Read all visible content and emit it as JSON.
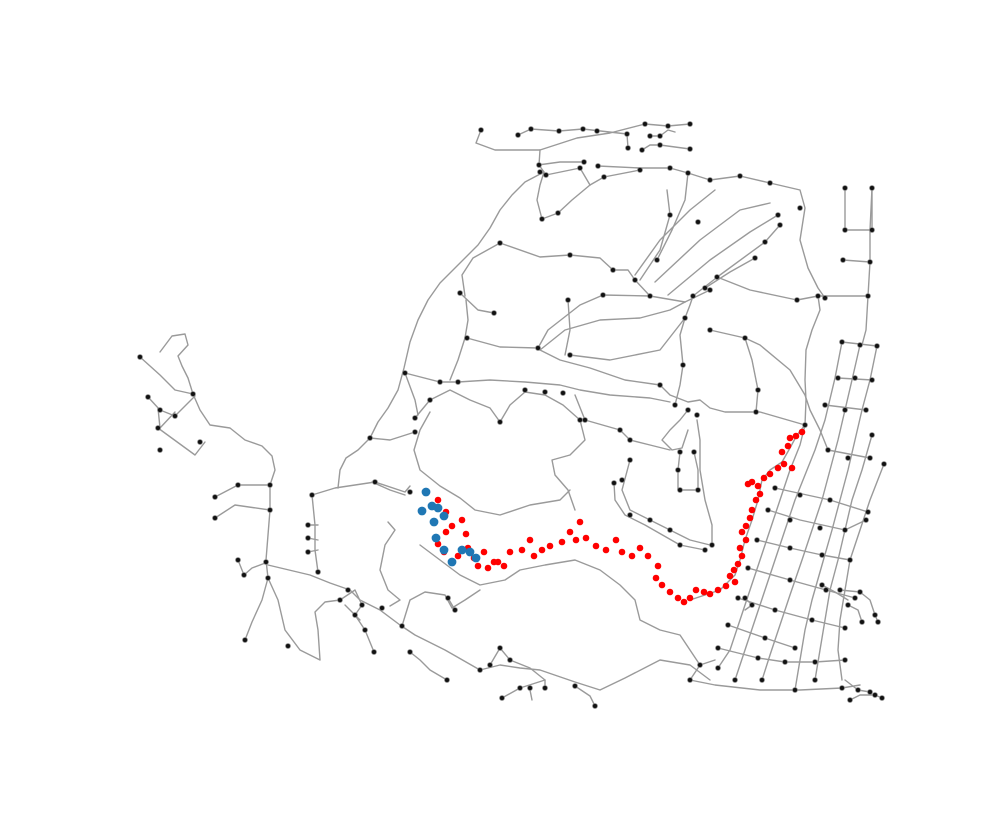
{
  "map": {
    "type": "street-network",
    "colors": {
      "background": "#ffffff",
      "road": "#9a9a9a",
      "node": "#111111",
      "route_main": "#ff0000",
      "route_alt": "#1f77b4"
    }
  }
}
